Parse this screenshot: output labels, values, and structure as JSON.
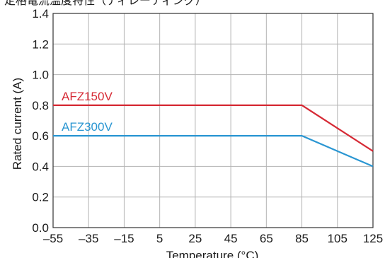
{
  "chart_data": {
    "type": "line",
    "title": "定格電流温度特性（ディレーティング）",
    "xlabel": "Temperature (°C)",
    "ylabel": "Rated current (A)",
    "xlim": [
      -55,
      125
    ],
    "ylim": [
      0.0,
      1.4
    ],
    "x_ticks": [
      -55,
      -35,
      -15,
      5,
      25,
      45,
      65,
      85,
      105,
      125
    ],
    "x_tick_labels": [
      "–55",
      "–35",
      "–15",
      "5",
      "25",
      "45",
      "65",
      "85",
      "105",
      "125"
    ],
    "y_ticks": [
      0.0,
      0.2,
      0.4,
      0.6,
      0.8,
      1.0,
      1.2,
      1.4
    ],
    "y_tick_labels": [
      "0.0",
      "0.2",
      "0.4",
      "0.6",
      "0.8",
      "1.0",
      "1.2",
      "1.4"
    ],
    "grid": true,
    "series": [
      {
        "name": "AFZ150V",
        "color": "#d62a35",
        "x": [
          -55,
          85,
          125
        ],
        "y": [
          0.8,
          0.8,
          0.5
        ]
      },
      {
        "name": "AFZ300V",
        "color": "#2a96d2",
        "x": [
          -55,
          85,
          125
        ],
        "y": [
          0.6,
          0.6,
          0.4
        ]
      }
    ]
  }
}
